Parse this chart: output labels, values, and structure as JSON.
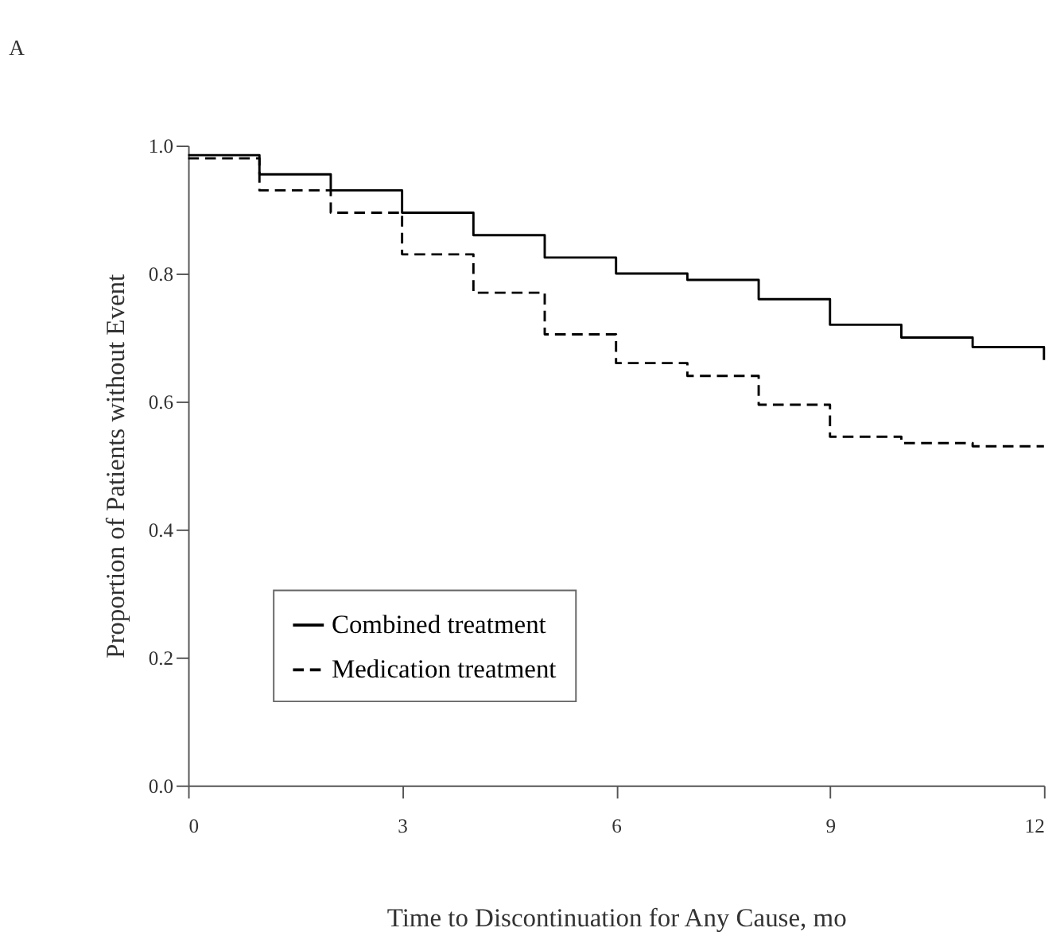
{
  "chart_data": {
    "type": "step",
    "xlabel": "Time to Discontinuation for Any Cause, mo",
    "ylabel": "Proportion of Patients without Event",
    "annotations": [
      "A"
    ],
    "x": [
      0,
      1,
      2,
      3,
      4,
      5,
      6,
      7,
      8,
      9,
      10,
      11,
      12
    ],
    "series": [
      {
        "name": "Combined treatment",
        "color": "#000000",
        "line_style": "solid",
        "values": [
          0.985,
          0.955,
          0.93,
          0.895,
          0.86,
          0.825,
          0.8,
          0.79,
          0.76,
          0.72,
          0.7,
          0.685,
          0.665
        ]
      },
      {
        "name": "Medication treatment",
        "color": "#000000",
        "line_style": "dashed",
        "values": [
          0.98,
          0.93,
          0.895,
          0.83,
          0.77,
          0.705,
          0.66,
          0.64,
          0.595,
          0.545,
          0.535,
          0.53,
          0.53
        ]
      }
    ],
    "xlim": [
      0,
      12
    ],
    "xticks": [
      0,
      3,
      6,
      9,
      12
    ],
    "ylim": [
      0,
      1
    ],
    "yticks": [
      {
        "value": 0,
        "label": "0.0"
      },
      0.2,
      0.4,
      0.6,
      0.8,
      {
        "value": 1,
        "label": "1.0"
      }
    ],
    "grid": false,
    "legend": "bottom left",
    "marker": "none"
  }
}
